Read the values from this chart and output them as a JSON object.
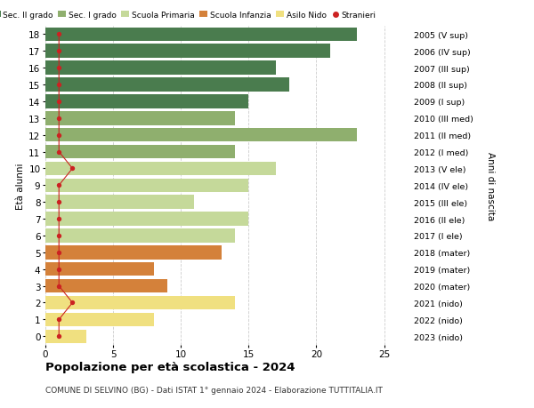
{
  "ages": [
    18,
    17,
    16,
    15,
    14,
    13,
    12,
    11,
    10,
    9,
    8,
    7,
    6,
    5,
    4,
    3,
    2,
    1,
    0
  ],
  "right_labels": [
    "2005 (V sup)",
    "2006 (IV sup)",
    "2007 (III sup)",
    "2008 (II sup)",
    "2009 (I sup)",
    "2010 (III med)",
    "2011 (II med)",
    "2012 (I med)",
    "2013 (V ele)",
    "2014 (IV ele)",
    "2015 (III ele)",
    "2016 (II ele)",
    "2017 (I ele)",
    "2018 (mater)",
    "2019 (mater)",
    "2020 (mater)",
    "2021 (nido)",
    "2022 (nido)",
    "2023 (nido)"
  ],
  "bar_values": [
    23,
    21,
    17,
    18,
    15,
    14,
    23,
    14,
    17,
    15,
    11,
    15,
    14,
    13,
    8,
    9,
    14,
    8,
    3
  ],
  "bar_colors": [
    "#4a7c4e",
    "#4a7c4e",
    "#4a7c4e",
    "#4a7c4e",
    "#4a7c4e",
    "#8faf6e",
    "#8faf6e",
    "#8faf6e",
    "#c5d99a",
    "#c5d99a",
    "#c5d99a",
    "#c5d99a",
    "#c5d99a",
    "#d4813a",
    "#d4813a",
    "#d4813a",
    "#f0e080",
    "#f0e080",
    "#f0e080"
  ],
  "stranieri_values": [
    1,
    1,
    1,
    1,
    1,
    1,
    1,
    1,
    2,
    1,
    1,
    1,
    1,
    1,
    1,
    1,
    2,
    1,
    1
  ],
  "stranieri_color": "#cc2222",
  "legend_labels": [
    "Sec. II grado",
    "Sec. I grado",
    "Scuola Primaria",
    "Scuola Infanzia",
    "Asilo Nido",
    "Stranieri"
  ],
  "legend_colors": [
    "#4a7c4e",
    "#8faf6e",
    "#c5d99a",
    "#d4813a",
    "#f0e080",
    "#cc2222"
  ],
  "ylabel": "Età alunni",
  "ylabel_right": "Anni di nascita",
  "title": "Popolazione per età scolastica - 2024",
  "subtitle": "COMUNE DI SELVINO (BG) - Dati ISTAT 1° gennaio 2024 - Elaborazione TUTTITALIA.IT",
  "xlim": [
    0,
    27
  ],
  "xticks": [
    0,
    5,
    10,
    15,
    20,
    25
  ],
  "bg_color": "#ffffff",
  "grid_color": "#cccccc"
}
